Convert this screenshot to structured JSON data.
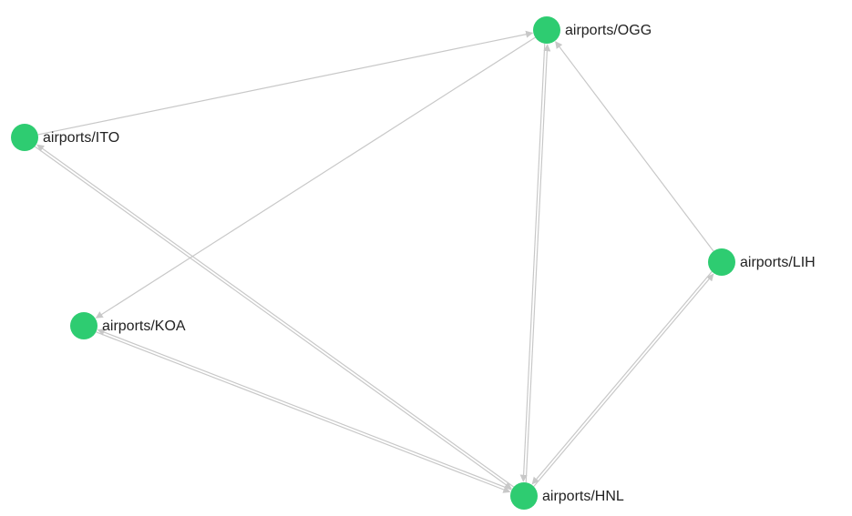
{
  "colors": {
    "node": "#2ecc71",
    "edge": "#c8c8c8",
    "label": "#222222",
    "background": "#ffffff"
  },
  "nodes": [
    {
      "id": "OGG",
      "label": "airports/OGG"
    },
    {
      "id": "ITO",
      "label": "airports/ITO"
    },
    {
      "id": "LIH",
      "label": "airports/LIH"
    },
    {
      "id": "KOA",
      "label": "airports/KOA"
    },
    {
      "id": "HNL",
      "label": "airports/HNL"
    }
  ],
  "edges": [
    {
      "from": "ITO",
      "to": "OGG"
    },
    {
      "from": "OGG",
      "to": "KOA"
    },
    {
      "from": "LIH",
      "to": "OGG"
    },
    {
      "from": "OGG",
      "to": "HNL"
    },
    {
      "from": "HNL",
      "to": "OGG"
    },
    {
      "from": "ITO",
      "to": "HNL"
    },
    {
      "from": "HNL",
      "to": "ITO"
    },
    {
      "from": "KOA",
      "to": "HNL"
    },
    {
      "from": "HNL",
      "to": "KOA"
    },
    {
      "from": "HNL",
      "to": "LIH"
    },
    {
      "from": "LIH",
      "to": "HNL"
    }
  ]
}
